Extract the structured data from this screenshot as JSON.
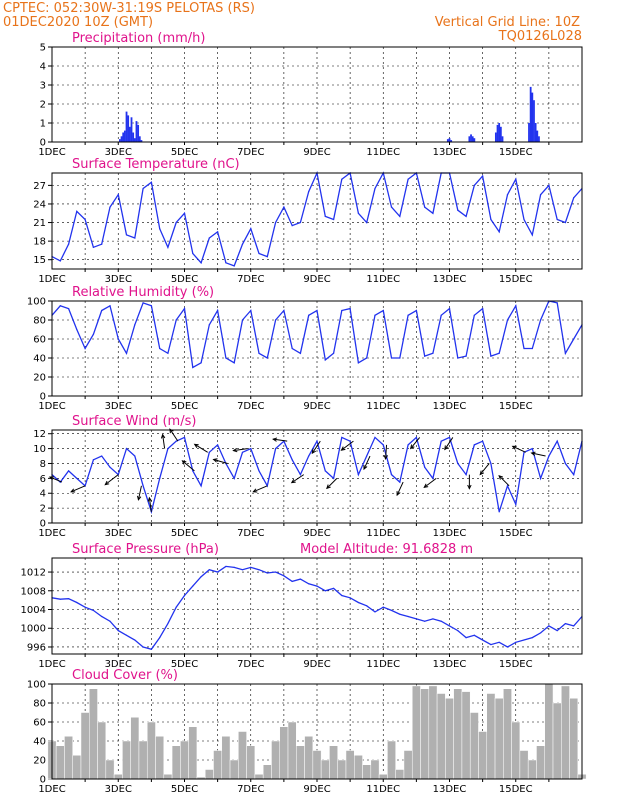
{
  "header": {
    "line1_left": "CPTEC:   052:30W-31:19S   PELOTAS (RS)",
    "line2_left": "01DEC2020 10Z (GMT)",
    "line1_right": "Vertical Grid Line: 10Z",
    "line2_right": "TQ0126L028"
  },
  "x_ticks": [
    "1DEC",
    "3DEC",
    "5DEC",
    "7DEC",
    "9DEC",
    "11DEC",
    "13DEC",
    "15DEC"
  ],
  "colors": {
    "series": "#2233ee",
    "title": "#e0138c",
    "header": "#e8731a",
    "bars": "#b0b0b0"
  },
  "chart_data": [
    {
      "type": "bar",
      "title": "Precipitation (mm/h)",
      "x_unit": "days since 1DEC 00Z",
      "ylim": [
        0,
        5
      ],
      "yticks": [
        0,
        1,
        2,
        3,
        4,
        5
      ],
      "x": [
        2.05,
        2.1,
        2.15,
        2.2,
        2.25,
        2.3,
        2.35,
        2.4,
        2.45,
        2.5,
        2.55,
        2.6,
        2.65,
        2.7,
        11.95,
        12.0,
        12.05,
        12.6,
        12.65,
        12.7,
        12.75,
        13.4,
        13.45,
        13.5,
        13.55,
        13.6,
        14.4,
        14.45,
        14.5,
        14.55,
        14.6,
        14.65,
        14.7
      ],
      "values": [
        0.15,
        0.3,
        0.5,
        0.6,
        1.6,
        1.4,
        0.8,
        1.3,
        0.5,
        0.2,
        1.1,
        0.9,
        0.3,
        0.1,
        0.15,
        0.2,
        0.1,
        0.3,
        0.4,
        0.3,
        0.2,
        0.5,
        0.9,
        1.0,
        0.8,
        0.3,
        1.0,
        2.9,
        2.6,
        2.2,
        1.0,
        0.6,
        0.3
      ]
    },
    {
      "type": "line",
      "title": "Surface Temperature (nC)",
      "x_unit": "days since 1DEC 00Z",
      "ylim": [
        13.5,
        29
      ],
      "yticks": [
        15,
        18,
        21,
        24,
        27
      ],
      "x": [
        0,
        0.25,
        0.5,
        0.75,
        1.0,
        1.25,
        1.5,
        1.75,
        2.0,
        2.25,
        2.5,
        2.75,
        3.0,
        3.25,
        3.5,
        3.75,
        4.0,
        4.25,
        4.5,
        4.75,
        5.0,
        5.25,
        5.5,
        5.75,
        6.0,
        6.25,
        6.5,
        6.75,
        7.0,
        7.25,
        7.5,
        7.75,
        8.0,
        8.25,
        8.5,
        8.75,
        9.0,
        9.25,
        9.5,
        9.75,
        10.0,
        10.25,
        10.5,
        10.75,
        11.0,
        11.25,
        11.5,
        11.75,
        12.0,
        12.25,
        12.5,
        12.75,
        13.0,
        13.25,
        13.5,
        13.75,
        14.0,
        14.25,
        14.5,
        14.75,
        15.0,
        15.25,
        15.5,
        15.75,
        16.0
      ],
      "values": [
        15.5,
        14.8,
        17.5,
        22.8,
        21.5,
        17.0,
        17.5,
        23.5,
        25.5,
        19.0,
        18.5,
        26.5,
        27.5,
        20.0,
        17.0,
        21.0,
        22.5,
        16.0,
        14.5,
        18.5,
        19.5,
        14.5,
        14.0,
        17.5,
        20.0,
        16.0,
        15.5,
        21.0,
        23.5,
        20.5,
        21.0,
        26.0,
        29.0,
        22.0,
        21.5,
        28.0,
        29.0,
        22.5,
        21.0,
        26.5,
        29.0,
        23.5,
        22.0,
        28.0,
        29.0,
        23.5,
        22.5,
        29.0,
        29.0,
        23.0,
        22.0,
        27.0,
        28.5,
        21.5,
        19.5,
        25.5,
        28.0,
        21.5,
        19.0,
        25.5,
        27.0,
        21.5,
        21.0,
        25.0,
        26.5
      ]
    },
    {
      "type": "line",
      "title": "Relative Humidity (%)",
      "x_unit": "days since 1DEC 00Z",
      "ylim": [
        0,
        100
      ],
      "yticks": [
        0,
        20,
        40,
        60,
        80,
        100
      ],
      "x": [
        0,
        0.25,
        0.5,
        0.75,
        1.0,
        1.25,
        1.5,
        1.75,
        2.0,
        2.25,
        2.5,
        2.75,
        3.0,
        3.25,
        3.5,
        3.75,
        4.0,
        4.25,
        4.5,
        4.75,
        5.0,
        5.25,
        5.5,
        5.75,
        6.0,
        6.25,
        6.5,
        6.75,
        7.0,
        7.25,
        7.5,
        7.75,
        8.0,
        8.25,
        8.5,
        8.75,
        9.0,
        9.25,
        9.5,
        9.75,
        10.0,
        10.25,
        10.5,
        10.75,
        11.0,
        11.25,
        11.5,
        11.75,
        12.0,
        12.25,
        12.5,
        12.75,
        13.0,
        13.25,
        13.5,
        13.75,
        14.0,
        14.25,
        14.5,
        14.75,
        15.0,
        15.25,
        15.5,
        15.75,
        16.0
      ],
      "values": [
        85,
        95,
        92,
        70,
        50,
        65,
        90,
        95,
        60,
        45,
        75,
        98,
        95,
        50,
        45,
        80,
        92,
        30,
        35,
        75,
        90,
        40,
        35,
        80,
        90,
        45,
        40,
        80,
        90,
        50,
        45,
        85,
        90,
        38,
        45,
        90,
        92,
        35,
        40,
        85,
        90,
        40,
        40,
        85,
        90,
        42,
        45,
        85,
        92,
        40,
        42,
        85,
        92,
        42,
        45,
        80,
        95,
        50,
        50,
        80,
        100,
        98,
        45,
        60,
        75
      ]
    },
    {
      "type": "line",
      "title": "Surface Wind (m/s)",
      "x_unit": "days since 1DEC 00Z",
      "ylim": [
        0,
        12.5
      ],
      "yticks": [
        0,
        2,
        4,
        6,
        8,
        10,
        12
      ],
      "x": [
        0,
        0.25,
        0.5,
        0.75,
        1.0,
        1.25,
        1.5,
        1.75,
        2.0,
        2.25,
        2.5,
        2.75,
        3.0,
        3.25,
        3.5,
        3.75,
        4.0,
        4.25,
        4.5,
        4.75,
        5.0,
        5.25,
        5.5,
        5.75,
        6.0,
        6.25,
        6.5,
        6.75,
        7.0,
        7.25,
        7.5,
        7.75,
        8.0,
        8.25,
        8.5,
        8.75,
        9.0,
        9.25,
        9.5,
        9.75,
        10.0,
        10.25,
        10.5,
        10.75,
        11.0,
        11.25,
        11.5,
        11.75,
        12.0,
        12.25,
        12.5,
        12.75,
        13.0,
        13.25,
        13.5,
        13.75,
        14.0,
        14.25,
        14.5,
        14.75,
        15.0,
        15.25,
        15.5,
        15.75,
        16.0
      ],
      "values": [
        6.5,
        5.5,
        7.0,
        6.0,
        5.0,
        8.5,
        9.0,
        7.5,
        6.5,
        10.0,
        9.0,
        5.0,
        1.5,
        6.0,
        10.0,
        11.0,
        11.5,
        7.0,
        5.0,
        9.5,
        10.5,
        8.0,
        6.0,
        9.5,
        10.0,
        7.0,
        5.0,
        10.0,
        11.0,
        8.5,
        6.5,
        9.0,
        11.0,
        7.0,
        6.0,
        11.5,
        11.0,
        6.5,
        9.0,
        11.5,
        10.5,
        6.5,
        5.5,
        10.5,
        11.5,
        7.5,
        6.0,
        11.0,
        11.5,
        8.0,
        6.5,
        10.5,
        11.0,
        8.0,
        1.5,
        5.0,
        2.5,
        9.5,
        10.0,
        6.0,
        9.0,
        11.0,
        8.0,
        6.5,
        11.0
      ],
      "arrows": [
        {
          "x": 0.3,
          "dx": -12,
          "dy": -5
        },
        {
          "x": 1.0,
          "dx": -14,
          "dy": 6
        },
        {
          "x": 2.0,
          "dx": -13,
          "dy": 10
        },
        {
          "x": 2.7,
          "dx": -3,
          "dy": 14
        },
        {
          "x": 3.0,
          "dx": -2,
          "dy": -14
        },
        {
          "x": 3.4,
          "dx": -2,
          "dy": -14
        },
        {
          "x": 3.8,
          "dx": -8,
          "dy": -12
        },
        {
          "x": 4.3,
          "dx": -12,
          "dy": -10
        },
        {
          "x": 4.7,
          "dx": -13,
          "dy": -8
        },
        {
          "x": 5.3,
          "dx": -14,
          "dy": -4
        },
        {
          "x": 5.9,
          "dx": -14,
          "dy": 2
        },
        {
          "x": 6.5,
          "dx": -14,
          "dy": 6
        },
        {
          "x": 7.1,
          "dx": -14,
          "dy": -2
        },
        {
          "x": 7.6,
          "dx": -12,
          "dy": 8
        },
        {
          "x": 8.1,
          "dx": -8,
          "dy": 12
        },
        {
          "x": 8.6,
          "dx": -10,
          "dy": 10
        },
        {
          "x": 9.1,
          "dx": -12,
          "dy": 9
        },
        {
          "x": 9.6,
          "dx": -6,
          "dy": 13
        },
        {
          "x": 10.1,
          "dx": -1,
          "dy": 14
        },
        {
          "x": 10.6,
          "dx": -6,
          "dy": 13
        },
        {
          "x": 11.1,
          "dx": -9,
          "dy": 11
        },
        {
          "x": 11.6,
          "dx": -12,
          "dy": 9
        },
        {
          "x": 12.1,
          "dx": -8,
          "dy": 12
        },
        {
          "x": 12.6,
          "dx": 0,
          "dy": 14
        },
        {
          "x": 13.2,
          "dx": -9,
          "dy": 11
        },
        {
          "x": 13.8,
          "dx": -10,
          "dy": -10
        },
        {
          "x": 14.3,
          "dx": -13,
          "dy": -6
        },
        {
          "x": 14.9,
          "dx": -14,
          "dy": -3
        }
      ]
    },
    {
      "type": "line",
      "title": "Surface Pressure (hPa)",
      "annotation": "Model Altitude: 91.6828 m",
      "x_unit": "days since 1DEC 00Z",
      "ylim": [
        994.5,
        1015
      ],
      "yticks": [
        996,
        1000,
        1004,
        1008,
        1012
      ],
      "x": [
        0,
        0.25,
        0.5,
        0.75,
        1.0,
        1.25,
        1.5,
        1.75,
        2.0,
        2.25,
        2.5,
        2.75,
        3.0,
        3.25,
        3.5,
        3.75,
        4.0,
        4.25,
        4.5,
        4.75,
        5.0,
        5.25,
        5.5,
        5.75,
        6.0,
        6.25,
        6.5,
        6.75,
        7.0,
        7.25,
        7.5,
        7.75,
        8.0,
        8.25,
        8.5,
        8.75,
        9.0,
        9.25,
        9.5,
        9.75,
        10.0,
        10.25,
        10.5,
        10.75,
        11.0,
        11.25,
        11.5,
        11.75,
        12.0,
        12.25,
        12.5,
        12.75,
        13.0,
        13.25,
        13.5,
        13.75,
        14.0,
        14.25,
        14.5,
        14.75,
        15.0,
        15.25,
        15.5,
        15.75,
        16.0
      ],
      "values": [
        1006.5,
        1006.2,
        1006.3,
        1005.5,
        1004.5,
        1003.8,
        1002.5,
        1001.5,
        999.5,
        998.5,
        997.5,
        996.0,
        995.5,
        998.0,
        1001.0,
        1004.5,
        1007.0,
        1009.0,
        1011.0,
        1012.5,
        1012.0,
        1013.2,
        1013.0,
        1012.5,
        1013.0,
        1012.5,
        1011.8,
        1012.0,
        1011.2,
        1010.0,
        1010.5,
        1009.5,
        1009.0,
        1008.0,
        1008.5,
        1007.0,
        1006.5,
        1005.5,
        1004.8,
        1003.5,
        1004.5,
        1003.8,
        1003.0,
        1002.5,
        1002.0,
        1001.5,
        1002.0,
        1001.5,
        1000.5,
        999.5,
        998.0,
        998.5,
        997.5,
        996.5,
        997.0,
        996.0,
        997.0,
        997.5,
        998.0,
        999.0,
        1000.5,
        999.5,
        1001.0,
        1000.5,
        1002.5
      ]
    },
    {
      "type": "area",
      "title": "Cloud Cover (%)",
      "x_unit": "days since 1DEC 00Z",
      "ylim": [
        0,
        100
      ],
      "yticks": [
        0,
        20,
        40,
        60,
        80,
        100
      ],
      "x": [
        0,
        0.25,
        0.5,
        0.75,
        1.0,
        1.25,
        1.5,
        1.75,
        2.0,
        2.25,
        2.5,
        2.75,
        3.0,
        3.25,
        3.5,
        3.75,
        4.0,
        4.25,
        4.5,
        4.75,
        5.0,
        5.25,
        5.5,
        5.75,
        6.0,
        6.25,
        6.5,
        6.75,
        7.0,
        7.25,
        7.5,
        7.75,
        8.0,
        8.25,
        8.5,
        8.75,
        9.0,
        9.25,
        9.5,
        9.75,
        10.0,
        10.25,
        10.5,
        10.75,
        11.0,
        11.25,
        11.5,
        11.75,
        12.0,
        12.25,
        12.5,
        12.75,
        13.0,
        13.25,
        13.5,
        13.75,
        14.0,
        14.25,
        14.5,
        14.75,
        15.0,
        15.25,
        15.5,
        15.75,
        16.0
      ],
      "values": [
        40,
        35,
        45,
        25,
        70,
        95,
        60,
        20,
        5,
        40,
        65,
        40,
        60,
        45,
        5,
        35,
        40,
        55,
        2,
        10,
        30,
        45,
        20,
        50,
        35,
        5,
        15,
        40,
        55,
        60,
        35,
        45,
        30,
        20,
        35,
        20,
        30,
        25,
        15,
        20,
        5,
        40,
        10,
        30,
        98,
        95,
        98,
        90,
        85,
        95,
        92,
        70,
        50,
        90,
        85,
        95,
        60,
        30,
        20,
        35,
        100,
        80,
        98,
        85,
        5
      ]
    }
  ]
}
